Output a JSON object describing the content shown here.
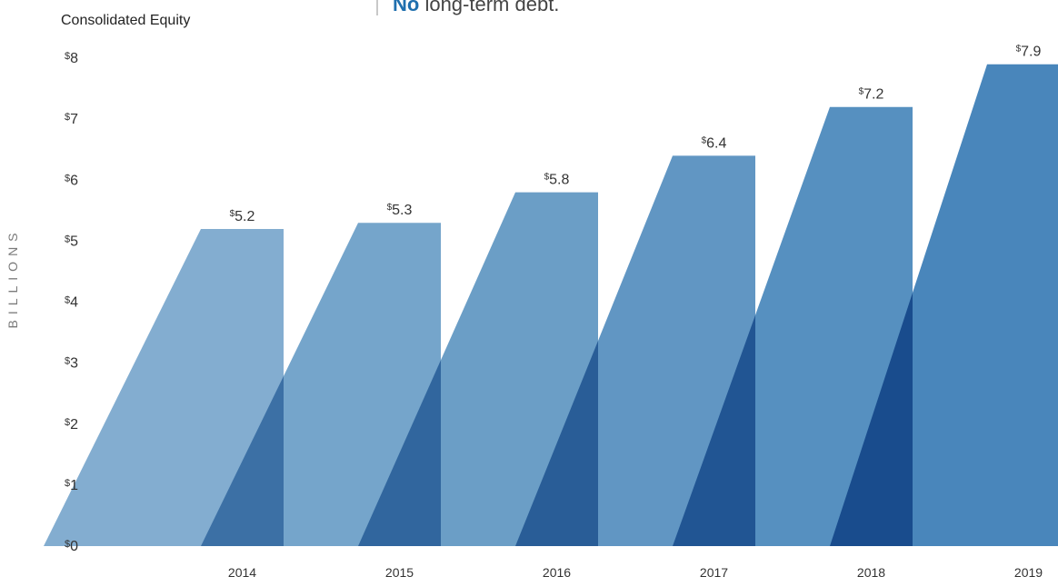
{
  "callout": {
    "emphasis": "No",
    "text": "long-term debt."
  },
  "chart_data": {
    "type": "area",
    "title": "Consolidated Equity",
    "ylabel": "BILLIONS",
    "xlabel": "",
    "categories": [
      "2014",
      "2015",
      "2016",
      "2017",
      "2018",
      "2019"
    ],
    "values": [
      5.2,
      5.3,
      5.8,
      6.4,
      7.2,
      7.9
    ],
    "value_labels": [
      "5.2",
      "5.3",
      "5.8",
      "6.4",
      "7.2",
      "7.9"
    ],
    "value_prefix": "$",
    "ylim": [
      0,
      8
    ],
    "yticks": [
      "$0",
      "$1",
      "$2",
      "$3",
      "$4",
      "$5",
      "$6",
      "$7",
      "$8"
    ],
    "grid": false,
    "colors": [
      "#7ca9cd",
      "#6ea0c8",
      "#6399c3",
      "#5890c0",
      "#4d8abd",
      "#3f80b7"
    ]
  }
}
